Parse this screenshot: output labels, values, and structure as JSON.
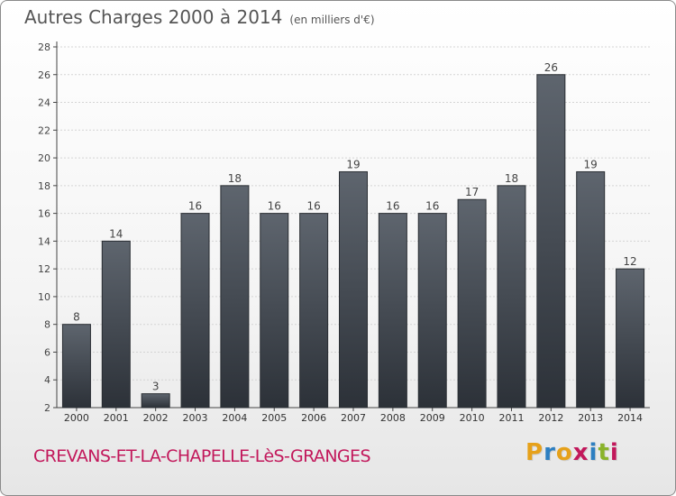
{
  "header": {
    "title": "Autres Charges 2000 à 2014",
    "subtitle": "(en milliers d'€)"
  },
  "footer": {
    "place": "CREVANS-ET-LA-CHAPELLE-LèS-GRANGES",
    "logo": "Proxiti",
    "logo_colors": [
      "#e6a11a",
      "#2d7fc1",
      "#e6a11a",
      "#c2185b",
      "#2d7fc1",
      "#8ab32b",
      "#c2185b"
    ]
  },
  "chart_data": {
    "type": "bar",
    "title": "Autres Charges 2000 à 2014",
    "categories": [
      "2000",
      "2001",
      "2002",
      "2003",
      "2004",
      "2005",
      "2006",
      "2007",
      "2008",
      "2009",
      "2010",
      "2011",
      "2012",
      "2013",
      "2014"
    ],
    "values": [
      8,
      14,
      3,
      16,
      18,
      16,
      16,
      19,
      16,
      16,
      17,
      18,
      26,
      19,
      12
    ],
    "ylim": [
      2,
      28
    ],
    "yticks": [
      2,
      4,
      6,
      8,
      10,
      12,
      14,
      16,
      18,
      20,
      22,
      24,
      26,
      28
    ],
    "grid": true,
    "bar_color": "#4a5058"
  }
}
